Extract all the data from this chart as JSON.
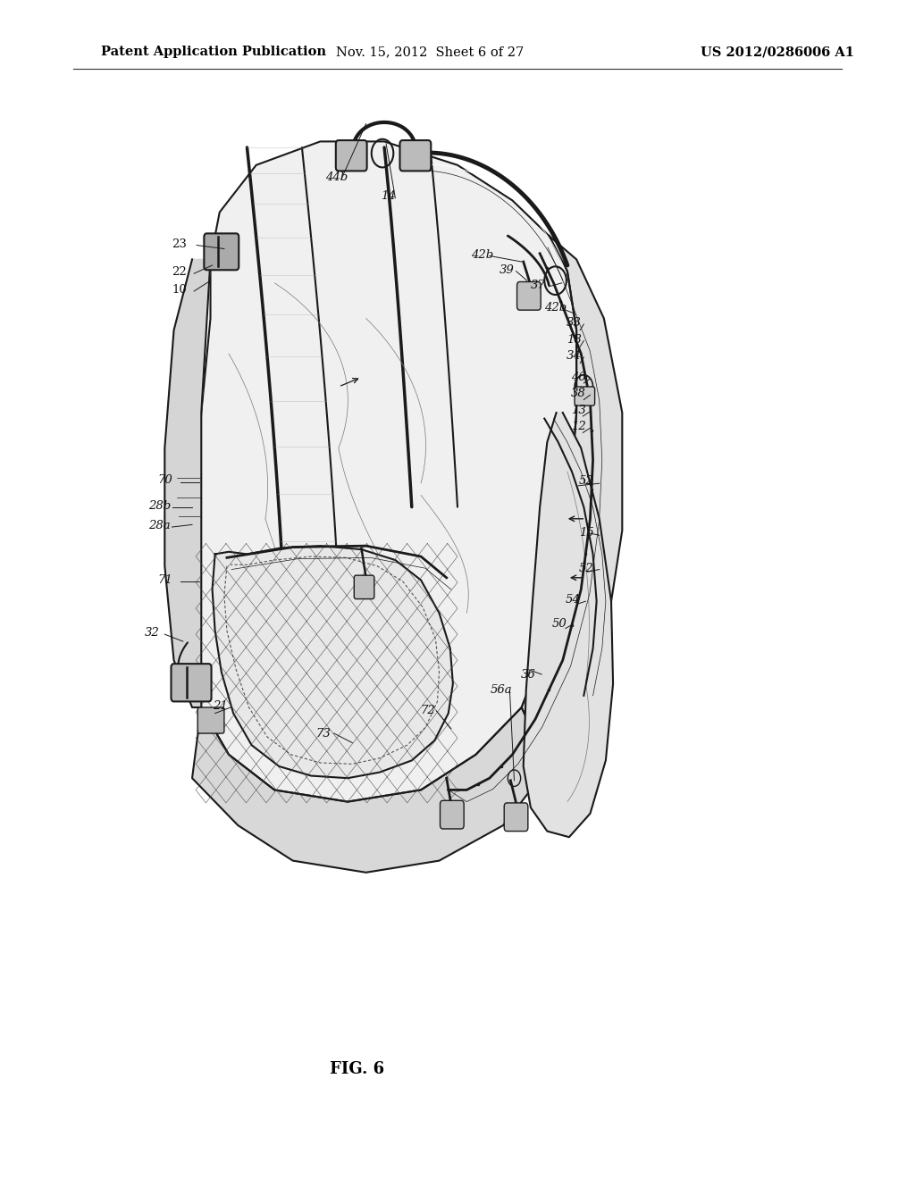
{
  "background_color": "#ffffff",
  "header_left": "Patent Application Publication",
  "header_center": "Nov. 15, 2012  Sheet 6 of 27",
  "header_right": "US 2012/0286006 A1",
  "figure_label": "FIG. 6",
  "header_fontsize": 10.5,
  "figure_label_fontsize": 13
}
